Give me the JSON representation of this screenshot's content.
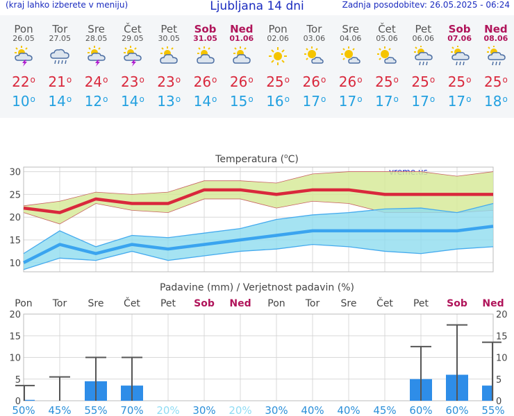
{
  "header": {
    "left_note": "(kraj lahko izberete v meniju)",
    "title": "Ljubljana 14 dni",
    "updated": "Zadnja posodobitev: 26.05.2025 - 06:24"
  },
  "days": [
    {
      "name": "Pon",
      "date": "26.05",
      "icon": "sun-cloud-lightning-icon",
      "tmax": "22",
      "tmin": "10",
      "weekend": false
    },
    {
      "name": "Tor",
      "date": "27.05",
      "icon": "cloud-rain-icon",
      "tmax": "21",
      "tmin": "14",
      "weekend": false
    },
    {
      "name": "Sre",
      "date": "28.05",
      "icon": "sun-cloud-lightning-icon",
      "tmax": "24",
      "tmin": "12",
      "weekend": false
    },
    {
      "name": "Čet",
      "date": "29.05",
      "icon": "sun-cloud-lightning-icon",
      "tmax": "23",
      "tmin": "14",
      "weekend": false
    },
    {
      "name": "Pet",
      "date": "30.05",
      "icon": "sun-cloud-icon",
      "tmax": "23",
      "tmin": "13",
      "weekend": false
    },
    {
      "name": "Sob",
      "date": "31.05",
      "icon": "sun-cloud-icon",
      "tmax": "26",
      "tmin": "14",
      "weekend": true
    },
    {
      "name": "Ned",
      "date": "01.06",
      "icon": "sun-cloud-icon",
      "tmax": "26",
      "tmin": "15",
      "weekend": true
    },
    {
      "name": "Pon",
      "date": "02.06",
      "icon": "sun-icon",
      "tmax": "25",
      "tmin": "16",
      "weekend": false
    },
    {
      "name": "Tor",
      "date": "03.06",
      "icon": "sun-small-cloud-icon",
      "tmax": "26",
      "tmin": "17",
      "weekend": false
    },
    {
      "name": "Sre",
      "date": "04.06",
      "icon": "sun-small-cloud-icon",
      "tmax": "26",
      "tmin": "17",
      "weekend": false
    },
    {
      "name": "Čet",
      "date": "05.06",
      "icon": "sun-small-cloud-icon",
      "tmax": "25",
      "tmin": "17",
      "weekend": false
    },
    {
      "name": "Pet",
      "date": "06.06",
      "icon": "sun-cloud-rain-icon",
      "tmax": "25",
      "tmin": "17",
      "weekend": false
    },
    {
      "name": "Sob",
      "date": "07.06",
      "icon": "sun-cloud-rain-icon",
      "tmax": "25",
      "tmin": "17",
      "weekend": true
    },
    {
      "name": "Ned",
      "date": "08.06",
      "icon": "sun-cloud-rain-icon",
      "tmax": "25",
      "tmin": "18",
      "weekend": true
    }
  ],
  "colors": {
    "tmax": "#d9283c",
    "tmin": "#22a0e0",
    "weekend": "#b0145a",
    "max_band": "#d7ea9a",
    "min_band": "#8fdcef",
    "bar": "#2e8de8",
    "errbar": "#555555"
  },
  "chart_data": [
    {
      "type": "line",
      "title": "Temperatura (°C)",
      "title_base": "Temperatura (",
      "title_sup": "o",
      "title_unit": "C)",
      "watermark": "vreme.us",
      "ylim": [
        8,
        31
      ],
      "yticks": [
        10,
        15,
        20,
        25,
        30
      ],
      "categories": [
        "26.05",
        "27.05",
        "28.05",
        "29.05",
        "30.05",
        "31.05",
        "01.06",
        "02.06",
        "03.06",
        "04.06",
        "05.06",
        "06.06",
        "07.06",
        "08.06"
      ],
      "series": [
        {
          "name": "Tmax",
          "values": [
            22,
            21,
            24,
            23,
            23,
            26,
            26,
            25,
            26,
            26,
            25,
            25,
            25,
            25
          ]
        },
        {
          "name": "Tmin",
          "values": [
            10,
            14,
            12,
            14,
            13,
            14,
            15,
            16,
            17,
            17,
            17,
            17,
            17,
            18
          ]
        }
      ],
      "bands": [
        {
          "name": "Tmax range",
          "lower": [
            21,
            18.5,
            23,
            21.5,
            21,
            24,
            24,
            22,
            23.5,
            23,
            21,
            21,
            21,
            21.5
          ],
          "upper": [
            22.5,
            23.5,
            25.5,
            25,
            25.5,
            28,
            28,
            27.5,
            29.5,
            30,
            30,
            30,
            29,
            30
          ]
        },
        {
          "name": "Tmin range",
          "lower": [
            8.5,
            11,
            10.5,
            12.5,
            10.5,
            11.5,
            12.5,
            13,
            14,
            13.5,
            12.5,
            12,
            13,
            13.5
          ],
          "upper": [
            12,
            17,
            13.5,
            16,
            15.5,
            16.5,
            17.5,
            19.5,
            20.5,
            21,
            21.8,
            22,
            21,
            23
          ]
        }
      ]
    },
    {
      "type": "bar",
      "title": "Padavine (mm) / Verjetnost padavin (%)",
      "ylim": [
        0,
        20
      ],
      "yticks": [
        0,
        5,
        10,
        15,
        20
      ],
      "day_labels": [
        "Pon",
        "Tor",
        "Sre",
        "Čet",
        "Pet",
        "Sob",
        "Ned",
        "Pon",
        "Tor",
        "Sre",
        "Čet",
        "Pet",
        "Sob",
        "Ned"
      ],
      "values": [
        0.2,
        0,
        4.5,
        3.5,
        0,
        0,
        0,
        0,
        0,
        0,
        0,
        5,
        6,
        3.5
      ],
      "error_max": [
        3.5,
        5.5,
        10,
        10,
        0,
        0,
        0,
        0,
        0,
        0,
        0,
        12.5,
        17.5,
        13.5
      ],
      "probability": [
        "50%",
        "45%",
        "55%",
        "70%",
        "20%",
        "30%",
        "20%",
        "30%",
        "40%",
        "40%",
        "45%",
        "60%",
        "60%",
        "55%"
      ],
      "probability_low": [
        false,
        false,
        false,
        false,
        true,
        false,
        true,
        false,
        false,
        false,
        false,
        false,
        false,
        false
      ]
    }
  ]
}
